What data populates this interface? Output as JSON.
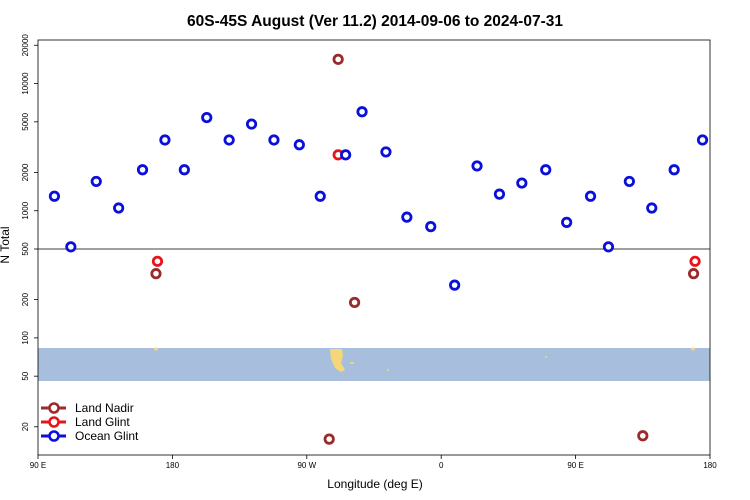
{
  "chart_data": {
    "type": "scatter",
    "title": "60S-45S August (Ver 11.2)   2014-09-06 to 2024-07-31",
    "xlabel": "Longitude (deg E)",
    "ylabel": "N Total",
    "x_ticks": [
      {
        "value": 90,
        "label": "90 E"
      },
      {
        "value": 180,
        "label": "180"
      },
      {
        "value": 270,
        "label": "90 W"
      },
      {
        "value": 360,
        "label": "0"
      },
      {
        "value": 450,
        "label": "90 E"
      },
      {
        "value": 540,
        "label": "180"
      }
    ],
    "xlim": [
      90,
      540
    ],
    "y_scale": "log",
    "ylim": [
      12,
      22000
    ],
    "y_ticks": [
      20,
      50,
      100,
      200,
      500,
      1000,
      2000,
      5000,
      10000,
      20000
    ],
    "reference_line_y": 500,
    "legend_position": "bottom-left",
    "colors": {
      "ocean_band": "#a7bedd",
      "land_patch": "#f5d77a"
    },
    "series": [
      {
        "name": "Land Nadir",
        "color": "#9b2b2b",
        "points": [
          {
            "x": 169,
            "y": 320
          },
          {
            "x": 291,
            "y": 15500
          },
          {
            "x": 302,
            "y": 190
          },
          {
            "x": 285,
            "y": 16
          },
          {
            "x": 495,
            "y": 17
          },
          {
            "x": 529,
            "y": 320
          }
        ]
      },
      {
        "name": "Land Glint",
        "color": "#e8141c",
        "points": [
          {
            "x": 170,
            "y": 400
          },
          {
            "x": 291,
            "y": 2750
          },
          {
            "x": 530,
            "y": 400
          }
        ]
      },
      {
        "name": "Ocean Glint",
        "color": "#0a10dc",
        "points": [
          {
            "x": 101,
            "y": 1300
          },
          {
            "x": 112,
            "y": 520
          },
          {
            "x": 129,
            "y": 1700
          },
          {
            "x": 144,
            "y": 1050
          },
          {
            "x": 160,
            "y": 2100
          },
          {
            "x": 175,
            "y": 3600
          },
          {
            "x": 188,
            "y": 2100
          },
          {
            "x": 203,
            "y": 5400
          },
          {
            "x": 218,
            "y": 3600
          },
          {
            "x": 233,
            "y": 4800
          },
          {
            "x": 248,
            "y": 3600
          },
          {
            "x": 265,
            "y": 3300
          },
          {
            "x": 279,
            "y": 1300
          },
          {
            "x": 296,
            "y": 2750
          },
          {
            "x": 307,
            "y": 6000
          },
          {
            "x": 323,
            "y": 2900
          },
          {
            "x": 337,
            "y": 890
          },
          {
            "x": 353,
            "y": 750
          },
          {
            "x": 369,
            "y": 260
          },
          {
            "x": 384,
            "y": 2250
          },
          {
            "x": 399,
            "y": 1350
          },
          {
            "x": 414,
            "y": 1650
          },
          {
            "x": 430,
            "y": 2100
          },
          {
            "x": 444,
            "y": 810
          },
          {
            "x": 460,
            "y": 1300
          },
          {
            "x": 472,
            "y": 520
          },
          {
            "x": 486,
            "y": 1700
          },
          {
            "x": 501,
            "y": 1050
          },
          {
            "x": 516,
            "y": 2100
          },
          {
            "x": 535,
            "y": 3600
          }
        ]
      }
    ]
  }
}
